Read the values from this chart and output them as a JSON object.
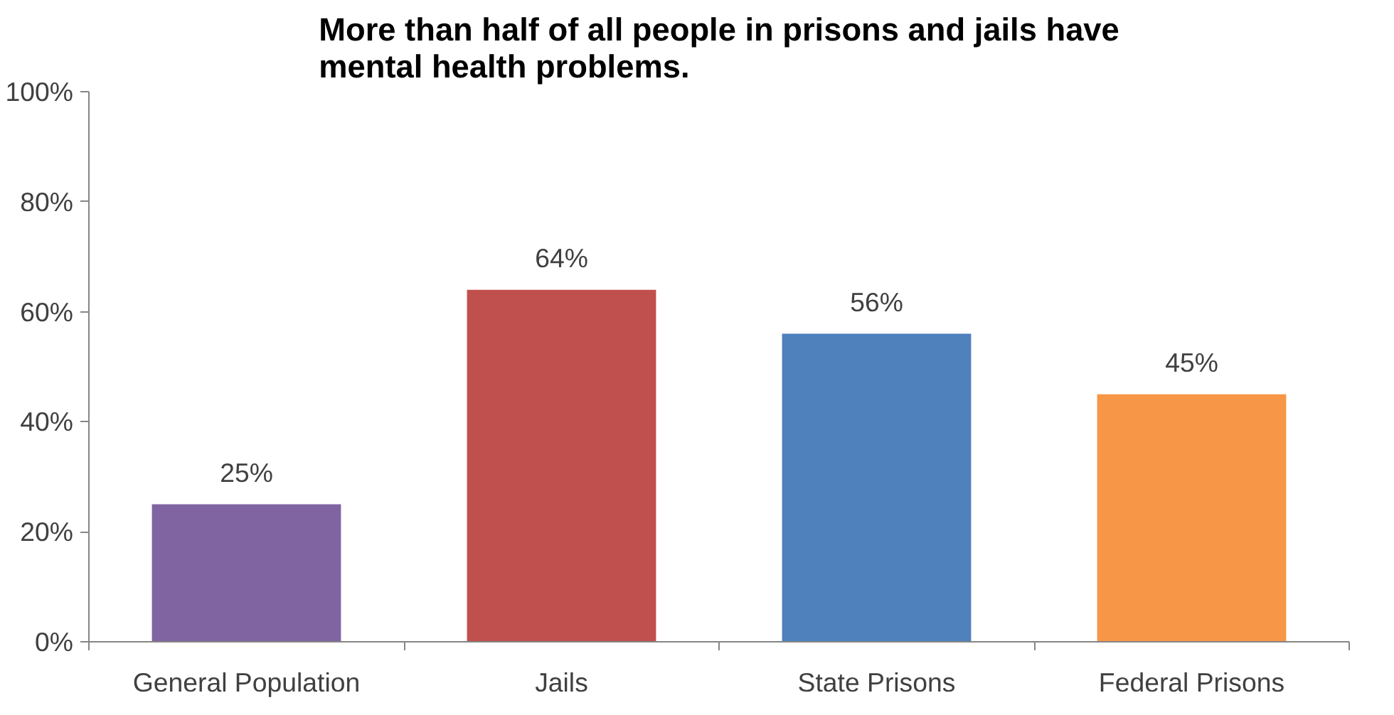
{
  "chart_data": {
    "type": "bar",
    "title": "More than half of all people in prisons and jails have mental health problems.",
    "categories": [
      "General Population",
      "Jails",
      "State Prisons",
      "Federal Prisons"
    ],
    "values": [
      25,
      64,
      56,
      45
    ],
    "colors": [
      "#8064a2",
      "#c0504d",
      "#4f81bd",
      "#f79646"
    ],
    "value_labels": [
      "25%",
      "64%",
      "56%",
      "45%"
    ],
    "ylim": [
      0,
      100
    ],
    "yticks": [
      {
        "value": 0,
        "label": "0%"
      },
      {
        "value": 20,
        "label": "20%"
      },
      {
        "value": 40,
        "label": "40%"
      },
      {
        "value": 60,
        "label": "60%"
      },
      {
        "value": 80,
        "label": "80%"
      },
      {
        "value": 100,
        "label": "100%"
      }
    ],
    "grid": false
  }
}
